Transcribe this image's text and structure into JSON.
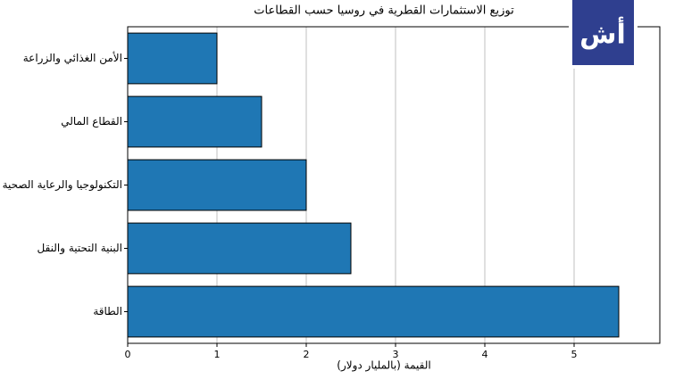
{
  "chart_data": {
    "type": "barh",
    "title": "توزيع الاستثمارات القطرية في روسيا حسب القطاعات",
    "x_label": "القيمة (بالمليار دولار)",
    "logo": "أش",
    "categories": [
      "الأمن الغذائي والزراعة",
      "القطاع المالي",
      "التكنولوجيا والرعاية الصحية",
      "البنية التحتية والنقل",
      "الطاقة"
    ],
    "values": [
      1,
      1.5,
      2,
      2.5,
      5.5
    ],
    "color": "#1f77b4",
    "xlim": [
      0,
      5.96
    ],
    "xticks": [
      0,
      1,
      2,
      3,
      4,
      5
    ],
    "grid": true
  }
}
